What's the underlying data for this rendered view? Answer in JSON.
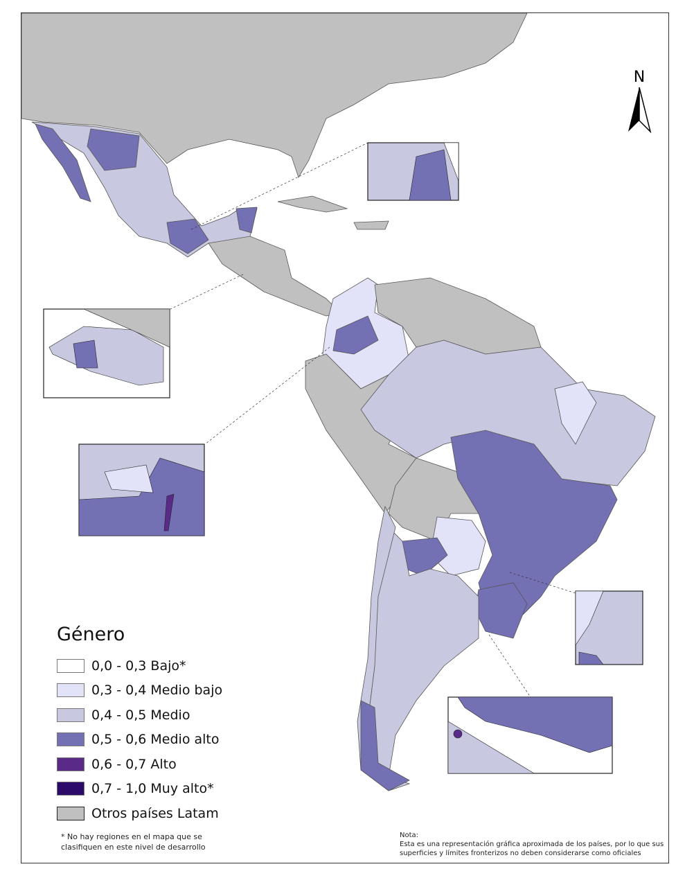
{
  "legend": {
    "title": "Género",
    "items": [
      {
        "label": "0,0 - 0,3 Bajo*",
        "color": "#ffffff"
      },
      {
        "label": "0,3 - 0,4 Medio bajo",
        "color": "#e2e2f8"
      },
      {
        "label": "0,4 - 0,5 Medio",
        "color": "#c8c8e0"
      },
      {
        "label": "0,5 - 0,6 Medio alto",
        "color": "#7470b4"
      },
      {
        "label": "0,6 - 0,7 Alto",
        "color": "#5a2a88"
      },
      {
        "label": "0,7 - 1,0 Muy alto*",
        "color": "#2c0a6a"
      },
      {
        "label": "Otros países Latam",
        "color": "#c0c0c0"
      }
    ],
    "footnote": "* No hay regiones en el mapa que se clasifiquen en este nivel de desarrollo"
  },
  "note": {
    "title": "Nota:",
    "text": "Esta es una representación gráfica aproximada de los países, por lo que sus superficies y límites fronterizos no deben considerarse como oficiales"
  },
  "north_arrow": {
    "label": "N"
  }
}
